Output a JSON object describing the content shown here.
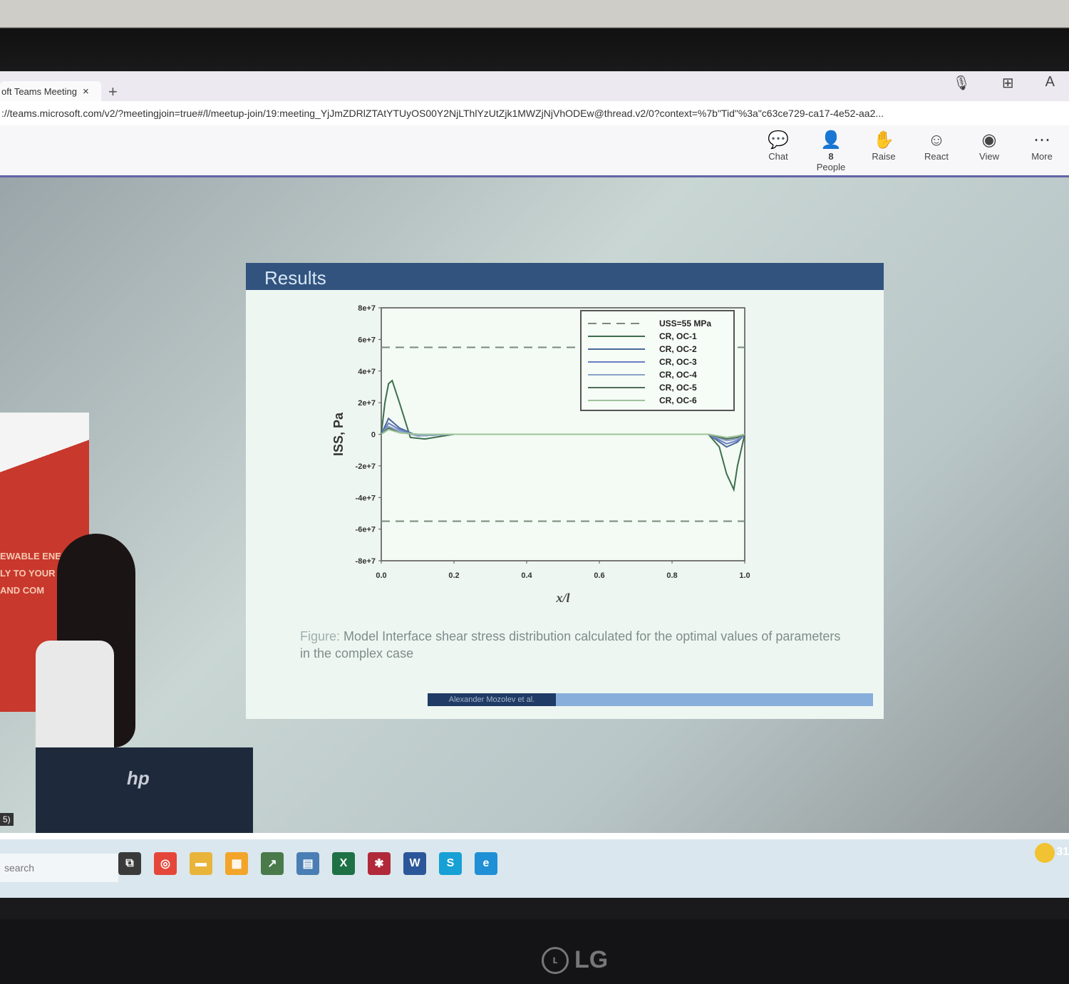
{
  "browser": {
    "tab_title": "oft Teams Meeting | M",
    "tab_close": "×",
    "new_tab": "+",
    "url": "://teams.microsoft.com/v2/?meetingjoin=true#/l/meetup-join/19:meeting_YjJmZDRlZTAtYTUyOS00Y2NjLThlYzUtZjk1MWZjNjVhODEw@thread.v2/0?context=%7b\"Tid\"%3a\"c63ce729-ca17-4e52-aa2..."
  },
  "teams_toolbar": {
    "items": [
      {
        "label": "Chat",
        "icon": "chat-icon",
        "glyph": "💬"
      },
      {
        "label": "People",
        "icon": "people-icon",
        "glyph": "👤",
        "count": "8"
      },
      {
        "label": "Raise",
        "icon": "hand-icon",
        "glyph": "✋"
      },
      {
        "label": "React",
        "icon": "smile-icon",
        "glyph": "☺"
      },
      {
        "label": "View",
        "icon": "view-icon",
        "glyph": "◉"
      },
      {
        "label": "More",
        "icon": "more-icon",
        "glyph": "⋯"
      }
    ]
  },
  "slide": {
    "title": "Results",
    "caption_label": "Figure:",
    "caption_text": "Model Interface shear stress distribution calculated for the optimal values of parameters in the complex case",
    "footer": "Alexander Mozolev et al."
  },
  "chart_data": {
    "type": "line",
    "ylabel": "ISS, Pa",
    "xlabel": "x/l",
    "ylim": [
      -80000000.0,
      80000000.0
    ],
    "xlim": [
      0.0,
      1.0
    ],
    "y_ticks": [
      "8e+7",
      "6e+7",
      "4e+7",
      "2e+7",
      "0",
      "-2e+7",
      "-4e+7",
      "-6e+7",
      "-8e+7"
    ],
    "x_ticks": [
      "0.0",
      "0.2",
      "0.4",
      "0.6",
      "0.8",
      "1.0"
    ],
    "series": [
      {
        "name": "USS=55 MPa",
        "color": "#7a8a7a",
        "dash": true,
        "x": [
          0,
          1
        ],
        "y": [
          55,
          55
        ],
        "y2": [
          -55,
          -55
        ]
      },
      {
        "name": "CR, OC-1",
        "color": "#3e6e4c",
        "x": [
          0.0,
          0.01,
          0.02,
          0.03,
          0.05,
          0.08,
          0.12,
          0.2,
          0.9,
          0.93,
          0.95,
          0.97,
          0.98,
          1.0
        ],
        "y": [
          0,
          20,
          32,
          34,
          20,
          -2,
          -3,
          0,
          0,
          -8,
          -25,
          -35,
          -20,
          0
        ]
      },
      {
        "name": "CR, OC-2",
        "color": "#4a6a9a",
        "x": [
          0.0,
          0.02,
          0.05,
          0.1,
          0.2,
          0.9,
          0.95,
          0.98,
          1.0
        ],
        "y": [
          0,
          10,
          4,
          -1,
          0,
          0,
          -8,
          -5,
          0
        ]
      },
      {
        "name": "CR, OC-3",
        "color": "#6a7fc4",
        "x": [
          0.0,
          0.02,
          0.05,
          0.1,
          0.2,
          0.9,
          0.95,
          0.98,
          1.0
        ],
        "y": [
          0,
          7,
          3,
          -1,
          0,
          0,
          -6,
          -4,
          0
        ]
      },
      {
        "name": "CR, OC-4",
        "color": "#8aa2c8",
        "x": [
          0.0,
          0.02,
          0.05,
          0.1,
          0.2,
          0.9,
          0.95,
          0.98,
          1.0
        ],
        "y": [
          0,
          5,
          2,
          -1,
          0,
          0,
          -4,
          -3,
          0
        ]
      },
      {
        "name": "CR, OC-5",
        "color": "#4f6e58",
        "x": [
          0.0,
          0.02,
          0.05,
          0.1,
          0.2,
          0.9,
          0.95,
          0.98,
          1.0
        ],
        "y": [
          0,
          4,
          1,
          0,
          0,
          0,
          -3,
          -2,
          0
        ]
      },
      {
        "name": "CR, OC-6",
        "color": "#9fc49a",
        "x": [
          0.0,
          0.02,
          0.05,
          0.1,
          0.2,
          0.9,
          0.95,
          0.98,
          1.0
        ],
        "y": [
          0,
          3,
          1,
          0,
          0,
          0,
          -2,
          -1,
          0
        ]
      }
    ]
  },
  "stage": {
    "banner_text": [
      "EWABLE ENE",
      "LY TO YOUR",
      "AND COM"
    ],
    "laptop_brand": "hp",
    "corner_badge": "5)"
  },
  "taskbar": {
    "search_placeholder": "search",
    "apps": [
      {
        "name": "task-view",
        "glyph": "⧉",
        "color": "#3a3a3a"
      },
      {
        "name": "chrome",
        "glyph": "◎",
        "color": "#e4473a"
      },
      {
        "name": "file-explorer",
        "glyph": "▬",
        "color": "#e8b43a"
      },
      {
        "name": "store",
        "glyph": "▦",
        "color": "#f2a52a"
      },
      {
        "name": "chart-app",
        "glyph": "↗",
        "color": "#4a7a4a"
      },
      {
        "name": "calculator",
        "glyph": "▤",
        "color": "#4a7eb4"
      },
      {
        "name": "excel",
        "glyph": "X",
        "color": "#1e7145"
      },
      {
        "name": "language",
        "glyph": "✱",
        "color": "#b02a3a"
      },
      {
        "name": "word",
        "glyph": "W",
        "color": "#2b579a"
      },
      {
        "name": "skype",
        "glyph": "S",
        "color": "#16a0d6"
      },
      {
        "name": "edge",
        "glyph": "e",
        "color": "#1f8fd6"
      }
    ],
    "weather_temp": "31"
  },
  "monitor": {
    "brand": "LG"
  }
}
